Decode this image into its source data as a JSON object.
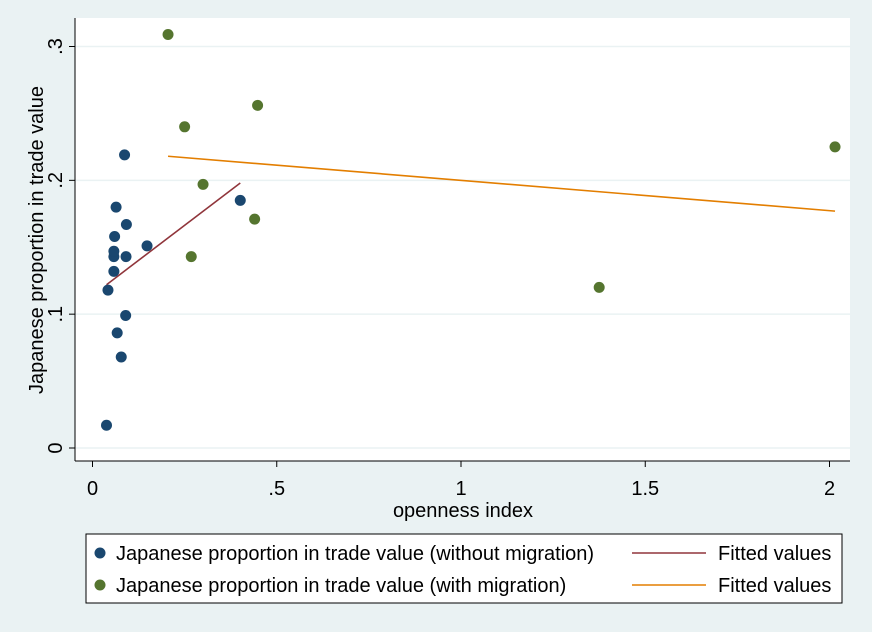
{
  "chart_data": {
    "type": "scatter",
    "xlabel": "openness index",
    "ylabel": "Japanese proportion in trade value",
    "xlim": [
      0,
      2.05
    ],
    "ylim": [
      0,
      0.31
    ],
    "xticks": [
      {
        "value": 0,
        "label": "0"
      },
      {
        "value": 0.5,
        "label": ".5"
      },
      {
        "value": 1,
        "label": "1"
      },
      {
        "value": 1.5,
        "label": "1.5"
      },
      {
        "value": 2,
        "label": "2"
      }
    ],
    "yticks": [
      {
        "value": 0,
        "label": "0"
      },
      {
        "value": 0.1,
        "label": ".1"
      },
      {
        "value": 0.2,
        "label": ".2"
      },
      {
        "value": 0.3,
        "label": ".3"
      }
    ],
    "grid": true,
    "legend_position": "bottom",
    "series": [
      {
        "name": "Japanese proportion in trade value (without migration)",
        "kind": "scatter",
        "color": "#1a476f",
        "points": [
          {
            "x": 0.038,
            "y": 0.017
          },
          {
            "x": 0.042,
            "y": 0.118
          },
          {
            "x": 0.058,
            "y": 0.132
          },
          {
            "x": 0.058,
            "y": 0.143
          },
          {
            "x": 0.058,
            "y": 0.147
          },
          {
            "x": 0.06,
            "y": 0.158
          },
          {
            "x": 0.064,
            "y": 0.18
          },
          {
            "x": 0.067,
            "y": 0.086
          },
          {
            "x": 0.078,
            "y": 0.068
          },
          {
            "x": 0.087,
            "y": 0.219
          },
          {
            "x": 0.09,
            "y": 0.099
          },
          {
            "x": 0.091,
            "y": 0.143
          },
          {
            "x": 0.092,
            "y": 0.167
          },
          {
            "x": 0.148,
            "y": 0.151
          },
          {
            "x": 0.401,
            "y": 0.185
          }
        ]
      },
      {
        "name": "Fitted values",
        "kind": "line",
        "color": "#90353b",
        "points": [
          {
            "x": 0.038,
            "y": 0.122
          },
          {
            "x": 0.401,
            "y": 0.198
          }
        ]
      },
      {
        "name": "Japanese proportion in trade value (with migration)",
        "kind": "scatter",
        "color": "#55752f",
        "points": [
          {
            "x": 0.205,
            "y": 0.309
          },
          {
            "x": 0.25,
            "y": 0.24
          },
          {
            "x": 0.268,
            "y": 0.143
          },
          {
            "x": 0.3,
            "y": 0.197
          },
          {
            "x": 0.44,
            "y": 0.171
          },
          {
            "x": 0.448,
            "y": 0.256
          },
          {
            "x": 1.375,
            "y": 0.12
          },
          {
            "x": 2.015,
            "y": 0.225
          }
        ]
      },
      {
        "name": "Fitted values",
        "kind": "line",
        "color": "#e37e00",
        "points": [
          {
            "x": 0.205,
            "y": 0.218
          },
          {
            "x": 2.015,
            "y": 0.177
          }
        ]
      }
    ],
    "legend_order": [
      0,
      1,
      2,
      3
    ]
  }
}
